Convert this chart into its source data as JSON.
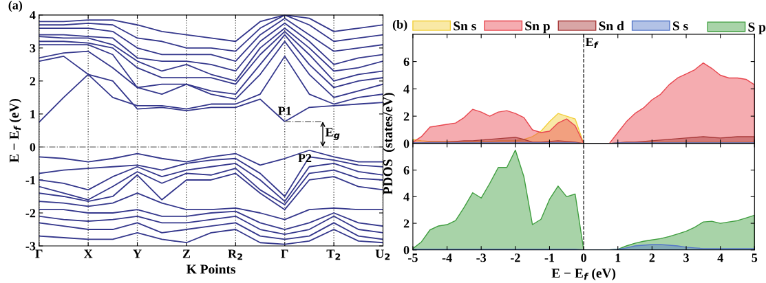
{
  "chart_data": [
    {
      "type": "line",
      "title": "(a)",
      "xlabel": "K Points",
      "ylabel": "E − E$_{f}$ (eV)",
      "categories": [
        "Γ",
        null,
        "X",
        null,
        "Y",
        null,
        "Z",
        null,
        "R$_{2}$",
        null,
        "Γ",
        null,
        "T$_{2}$",
        null,
        "U$_{2}$"
      ],
      "ylim": [
        -3,
        4
      ],
      "yticks": [
        -3,
        -2,
        -1,
        0,
        1,
        2,
        3,
        4
      ],
      "grid": "x",
      "legend": false,
      "ref_lines": [
        {
          "axis": "y",
          "value": 0,
          "color": "#888888",
          "line_style": "dashdot"
        }
      ],
      "annotations": [
        {
          "text": "P1",
          "y": 0.77
        },
        {
          "text": "P2",
          "y": 0
        },
        {
          "text": "E$_{g}$",
          "y": 0
        }
      ],
      "series": [
        {
          "color": "#34378c",
          "values": [
            0.75,
            1.5,
            2.2,
            2.0,
            1.15,
            1.2,
            1.1,
            1.2,
            1.2,
            1.45,
            0.77,
            1.2,
            1.25,
            1.3,
            1.35
          ]
        },
        {
          "color": "#34378c",
          "values": [
            2.6,
            2.75,
            2.2,
            1.5,
            1.25,
            1.25,
            1.15,
            1.3,
            1.3,
            1.6,
            2.75,
            1.6,
            1.3,
            1.5,
            1.6
          ]
        },
        {
          "color": "#34378c",
          "values": [
            2.7,
            2.85,
            2.9,
            2.4,
            1.8,
            1.9,
            1.9,
            1.6,
            1.45,
            2.2,
            3.2,
            2.2,
            1.5,
            1.7,
            1.9
          ]
        },
        {
          "color": "#34378c",
          "values": [
            3.1,
            3.1,
            3.1,
            2.8,
            1.8,
            1.6,
            1.9,
            1.7,
            1.6,
            2.5,
            3.4,
            2.5,
            1.8,
            2.0,
            2.1
          ]
        },
        {
          "color": "#34378c",
          "values": [
            3.2,
            3.2,
            3.15,
            3.0,
            2.4,
            2.1,
            2.1,
            2.1,
            1.9,
            2.8,
            3.5,
            2.8,
            2.0,
            2.2,
            2.3
          ]
        },
        {
          "color": "#34378c",
          "values": [
            3.35,
            3.3,
            3.3,
            3.1,
            2.6,
            2.3,
            2.5,
            2.2,
            2.0,
            3.0,
            3.6,
            3.0,
            2.3,
            2.4,
            2.6
          ]
        },
        {
          "color": "#34378c",
          "values": [
            3.4,
            3.4,
            3.35,
            3.3,
            2.7,
            2.6,
            2.6,
            2.5,
            2.3,
            3.2,
            3.75,
            3.2,
            2.5,
            2.7,
            2.8
          ]
        },
        {
          "color": "#34378c",
          "values": [
            3.6,
            3.6,
            3.6,
            3.5,
            3.0,
            2.8,
            2.8,
            2.8,
            2.6,
            3.4,
            3.9,
            3.4,
            2.9,
            3.0,
            3.1
          ]
        },
        {
          "color": "#34378c",
          "values": [
            3.7,
            3.7,
            3.75,
            3.7,
            3.3,
            3.2,
            3.0,
            3.0,
            2.9,
            3.6,
            4.0,
            3.7,
            3.2,
            3.3,
            3.4
          ]
        },
        {
          "color": "#34378c",
          "values": [
            3.8,
            3.8,
            3.85,
            3.85,
            3.7,
            3.5,
            3.4,
            3.3,
            3.2,
            3.8,
            4.0,
            3.9,
            3.5,
            3.6,
            3.7
          ]
        },
        {
          "color": "#34378c",
          "values": [
            -0.3,
            -0.35,
            -0.45,
            -0.35,
            -0.2,
            -0.35,
            -0.45,
            -0.3,
            -0.2,
            -0.55,
            -0.35,
            -0.1,
            -0.3,
            -0.45,
            -0.45
          ]
        },
        {
          "color": "#34378c",
          "values": [
            -0.8,
            -0.7,
            -0.65,
            -0.6,
            -0.55,
            -0.7,
            -0.5,
            -0.4,
            -0.35,
            -0.8,
            -1.5,
            -0.3,
            -0.4,
            -0.55,
            -0.6
          ]
        },
        {
          "color": "#34378c",
          "values": [
            -1.0,
            -1.1,
            -1.3,
            -0.9,
            -0.6,
            -0.9,
            -0.7,
            -0.6,
            -0.5,
            -1.0,
            -1.65,
            -0.6,
            -0.5,
            -0.75,
            -0.85
          ]
        },
        {
          "color": "#34378c",
          "values": [
            -1.2,
            -1.4,
            -1.6,
            -1.2,
            -0.75,
            -1.1,
            -0.8,
            -0.85,
            -0.65,
            -1.3,
            -1.75,
            -0.8,
            -0.7,
            -0.95,
            -1.0
          ]
        },
        {
          "color": "#34378c",
          "values": [
            -1.4,
            -1.5,
            -1.65,
            -1.5,
            -0.85,
            -1.6,
            -1.0,
            -1.0,
            -0.8,
            -1.4,
            -1.9,
            -1.0,
            -0.9,
            -1.2,
            -1.3
          ]
        },
        {
          "color": "#34378c",
          "values": [
            -1.65,
            -1.7,
            -1.8,
            -1.7,
            -1.4,
            -1.7,
            -1.9,
            -1.9,
            -1.85,
            -2.0,
            -2.2,
            -1.9,
            -1.85,
            -1.9,
            -1.9
          ]
        },
        {
          "color": "#34378c",
          "values": [
            -1.9,
            -1.9,
            -2.0,
            -2.0,
            -1.9,
            -2.1,
            -2.1,
            -2.0,
            -1.95,
            -2.3,
            -2.5,
            -2.3,
            -2.0,
            -2.3,
            -2.4
          ]
        },
        {
          "color": "#34378c",
          "values": [
            -2.1,
            -2.2,
            -2.25,
            -2.2,
            -2.1,
            -2.3,
            -2.3,
            -2.2,
            -2.1,
            -2.5,
            -2.65,
            -2.5,
            -2.1,
            -2.5,
            -2.6
          ]
        },
        {
          "color": "#34378c",
          "values": [
            -2.3,
            -2.4,
            -2.5,
            -2.5,
            -2.3,
            -2.6,
            -2.5,
            -2.4,
            -2.3,
            -2.7,
            -2.8,
            -2.7,
            -2.3,
            -2.7,
            -2.8
          ]
        },
        {
          "color": "#34378c",
          "values": [
            -2.7,
            -2.75,
            -2.8,
            -2.8,
            -2.6,
            -2.8,
            -2.9,
            -2.6,
            -2.5,
            -2.9,
            -2.95,
            -2.85,
            -2.5,
            -2.85,
            -2.9
          ]
        }
      ]
    },
    {
      "type": "area",
      "title": "(b)",
      "ylabel": "PDOS  (states/eV)",
      "legend": "top",
      "tick_labels": "y",
      "x": [
        -5,
        -4.75,
        -4.5,
        -4.25,
        -4,
        -3.75,
        -3.5,
        -3.25,
        -3,
        -2.75,
        -2.5,
        -2.25,
        -2,
        -1.75,
        -1.5,
        -1.25,
        -1,
        -0.75,
        -0.5,
        -0.25,
        0,
        0.25,
        0.5,
        0.75,
        1,
        1.25,
        1.5,
        1.75,
        2,
        2.25,
        2.5,
        2.75,
        3,
        3.25,
        3.5,
        3.75,
        4,
        4.25,
        4.5,
        4.75,
        5
      ],
      "xlim": [
        -5,
        5
      ],
      "xticks": [
        -5,
        -4,
        -3,
        -2,
        -1,
        0,
        1,
        2,
        3,
        4,
        5
      ],
      "ylim": [
        0,
        8
      ],
      "yticks": [
        0,
        2,
        4,
        6
      ],
      "ref_lines": [
        {
          "axis": "x",
          "value": 0,
          "label": "E$_{f}$",
          "color": "#222222",
          "line_style": "dashed"
        }
      ],
      "series": [
        {
          "name": "Sn s",
          "color": "#f2cf3a",
          "values": [
            0.3,
            0.2,
            0.15,
            0.15,
            0.15,
            0.15,
            0.15,
            0.15,
            0.15,
            0.15,
            0.2,
            0.2,
            0.2,
            0.3,
            0.5,
            0.9,
            1.6,
            2.2,
            2.0,
            1.8,
            0,
            0,
            0,
            0,
            0.05,
            0.1,
            0.1,
            0.1,
            0.1,
            0.1,
            0.1,
            0.1,
            0.1,
            0.1,
            0.1,
            0.1,
            0.1,
            0.1,
            0.1,
            0.1,
            0.1
          ]
        },
        {
          "name": "Sn p",
          "color": "#e8474f",
          "values": [
            0.1,
            0.5,
            1.2,
            1.3,
            1.4,
            1.5,
            1.9,
            2.5,
            2.3,
            2.0,
            2.3,
            2.4,
            2.2,
            1.9,
            1.0,
            0.8,
            0.9,
            1.5,
            1.8,
            1.3,
            0,
            0,
            0,
            0,
            0.8,
            1.6,
            2.2,
            2.6,
            3.2,
            3.6,
            4.3,
            4.8,
            5.1,
            5.4,
            5.9,
            5.5,
            5.0,
            4.8,
            4.8,
            4.7,
            4.3
          ]
        },
        {
          "name": "Sn d",
          "color": "#a83a3a",
          "values": [
            0.05,
            0.05,
            0.1,
            0.1,
            0.1,
            0.15,
            0.2,
            0.2,
            0.25,
            0.3,
            0.35,
            0.4,
            0.45,
            0.3,
            0.1,
            0.1,
            0.15,
            0.2,
            0.15,
            0.1,
            0,
            0,
            0,
            0,
            0.05,
            0.1,
            0.1,
            0.15,
            0.2,
            0.25,
            0.3,
            0.35,
            0.4,
            0.45,
            0.5,
            0.45,
            0.4,
            0.45,
            0.5,
            0.5,
            0.5
          ]
        },
        {
          "name": "S s",
          "color": "#5577c8",
          "values": [
            0.05,
            0.05,
            0.05,
            0.05,
            0.05,
            0.05,
            0.05,
            0.05,
            0.05,
            0.05,
            0.05,
            0.05,
            0.05,
            0.05,
            0.05,
            0.05,
            0.05,
            0.05,
            0.05,
            0.05,
            0,
            0,
            0,
            0,
            0.05,
            0.05,
            0.05,
            0.05,
            0.05,
            0.05,
            0.05,
            0.05,
            0.05,
            0.05,
            0.05,
            0.05,
            0.05,
            0.05,
            0.05,
            0.05,
            0.05
          ]
        }
      ]
    },
    {
      "type": "area",
      "xlabel": "E − E$_{f}$ (eV)",
      "legend": "top",
      "x": [
        -5,
        -4.75,
        -4.5,
        -4.25,
        -4,
        -3.75,
        -3.5,
        -3.25,
        -3,
        -2.75,
        -2.5,
        -2.25,
        -2,
        -1.75,
        -1.5,
        -1.25,
        -1,
        -0.75,
        -0.5,
        -0.25,
        0,
        0.25,
        0.5,
        0.75,
        1,
        1.25,
        1.5,
        1.75,
        2,
        2.25,
        2.5,
        2.75,
        3,
        3.25,
        3.5,
        3.75,
        4,
        4.25,
        4.5,
        4.75,
        5
      ],
      "xlim": [
        -5,
        5
      ],
      "xticks": [
        -5,
        -4,
        -3,
        -2,
        -1,
        0,
        1,
        2,
        3,
        4,
        5
      ],
      "ylim": [
        0,
        8
      ],
      "yticks": [
        0,
        2,
        4,
        6
      ],
      "ref_lines": [
        {
          "axis": "x",
          "value": 0,
          "color": "#222222",
          "line_style": "dashed"
        }
      ],
      "series": [
        {
          "name": "S p",
          "color": "#3f9e3f",
          "values": [
            0.1,
            0.6,
            1.5,
            1.8,
            1.9,
            2.2,
            3.2,
            4.3,
            3.9,
            5.0,
            6.2,
            6.2,
            7.5,
            5.5,
            1.9,
            2.3,
            3.8,
            4.8,
            4.0,
            4.2,
            0,
            0,
            0,
            0,
            0.05,
            0.3,
            0.5,
            0.65,
            0.75,
            0.85,
            1.0,
            1.2,
            1.4,
            1.7,
            2.1,
            2.15,
            2.0,
            2.1,
            2.2,
            2.4,
            2.6
          ]
        },
        {
          "color": "#5577c8",
          "values": [
            0.05,
            0.05,
            0.05,
            0.05,
            0.05,
            0.05,
            0.05,
            0.05,
            0.05,
            0.05,
            0.05,
            0.05,
            0.05,
            0.05,
            0.05,
            0.05,
            0.05,
            0.05,
            0.05,
            0.05,
            0,
            0,
            0,
            0,
            0.05,
            0.15,
            0.3,
            0.35,
            0.4,
            0.4,
            0.35,
            0.3,
            0.2,
            0.15,
            0.1,
            0.1,
            0.1,
            0.1,
            0.1,
            0.1,
            0.1
          ]
        }
      ]
    }
  ]
}
